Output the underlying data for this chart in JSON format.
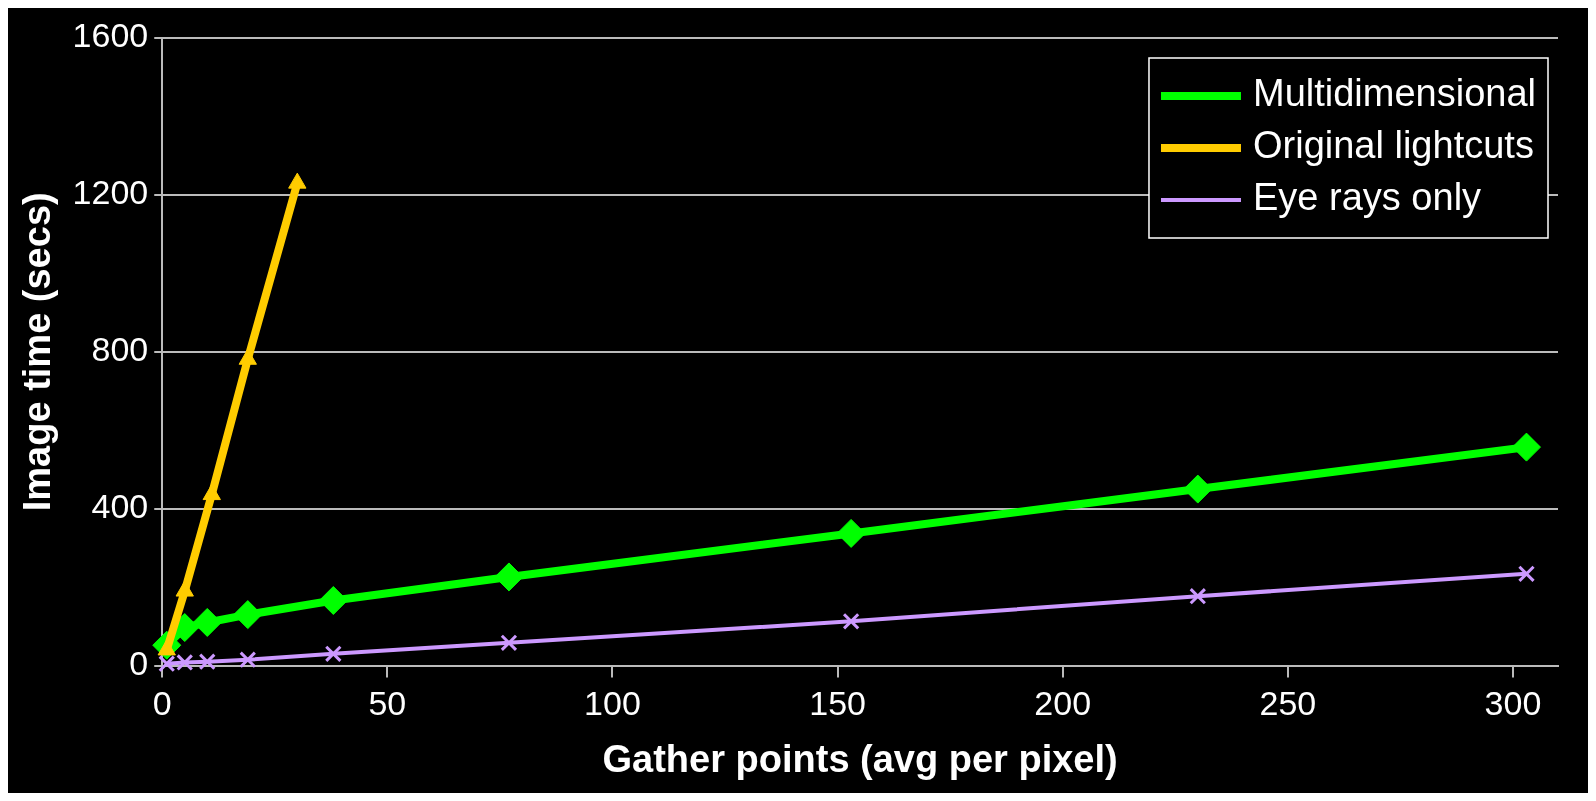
{
  "chart_data": {
    "type": "line",
    "xlabel": "Gather points (avg per pixel)",
    "ylabel": "Image time (secs)",
    "xlim": [
      0,
      310
    ],
    "xticks": [
      0,
      50,
      100,
      150,
      200,
      250,
      300
    ],
    "ylim": [
      0,
      1600
    ],
    "yticks": [
      0,
      400,
      800,
      1200,
      1600
    ],
    "grid": "y",
    "legend": "top right",
    "series": [
      {
        "name": "Multidimensional",
        "color": "#00ff00",
        "marker": "diamond",
        "x": [
          1,
          5,
          10,
          19,
          38,
          77,
          153,
          230,
          303
        ],
        "values": [
          52,
          97,
          110,
          130,
          166,
          226,
          337,
          450,
          557
        ]
      },
      {
        "name": "Original lightcuts",
        "color": "#ffcc00",
        "marker": "triangle",
        "x": [
          1,
          5,
          11,
          19,
          30
        ],
        "values": [
          40,
          190,
          436,
          781,
          1230
        ]
      },
      {
        "name": "Eye rays only",
        "color": "#cc99ff",
        "marker": "cross",
        "x": [
          1,
          5,
          10,
          19,
          38,
          77,
          153,
          230,
          303
        ],
        "values": [
          5,
          8,
          10,
          15,
          30,
          58,
          113,
          177,
          234
        ]
      }
    ]
  }
}
